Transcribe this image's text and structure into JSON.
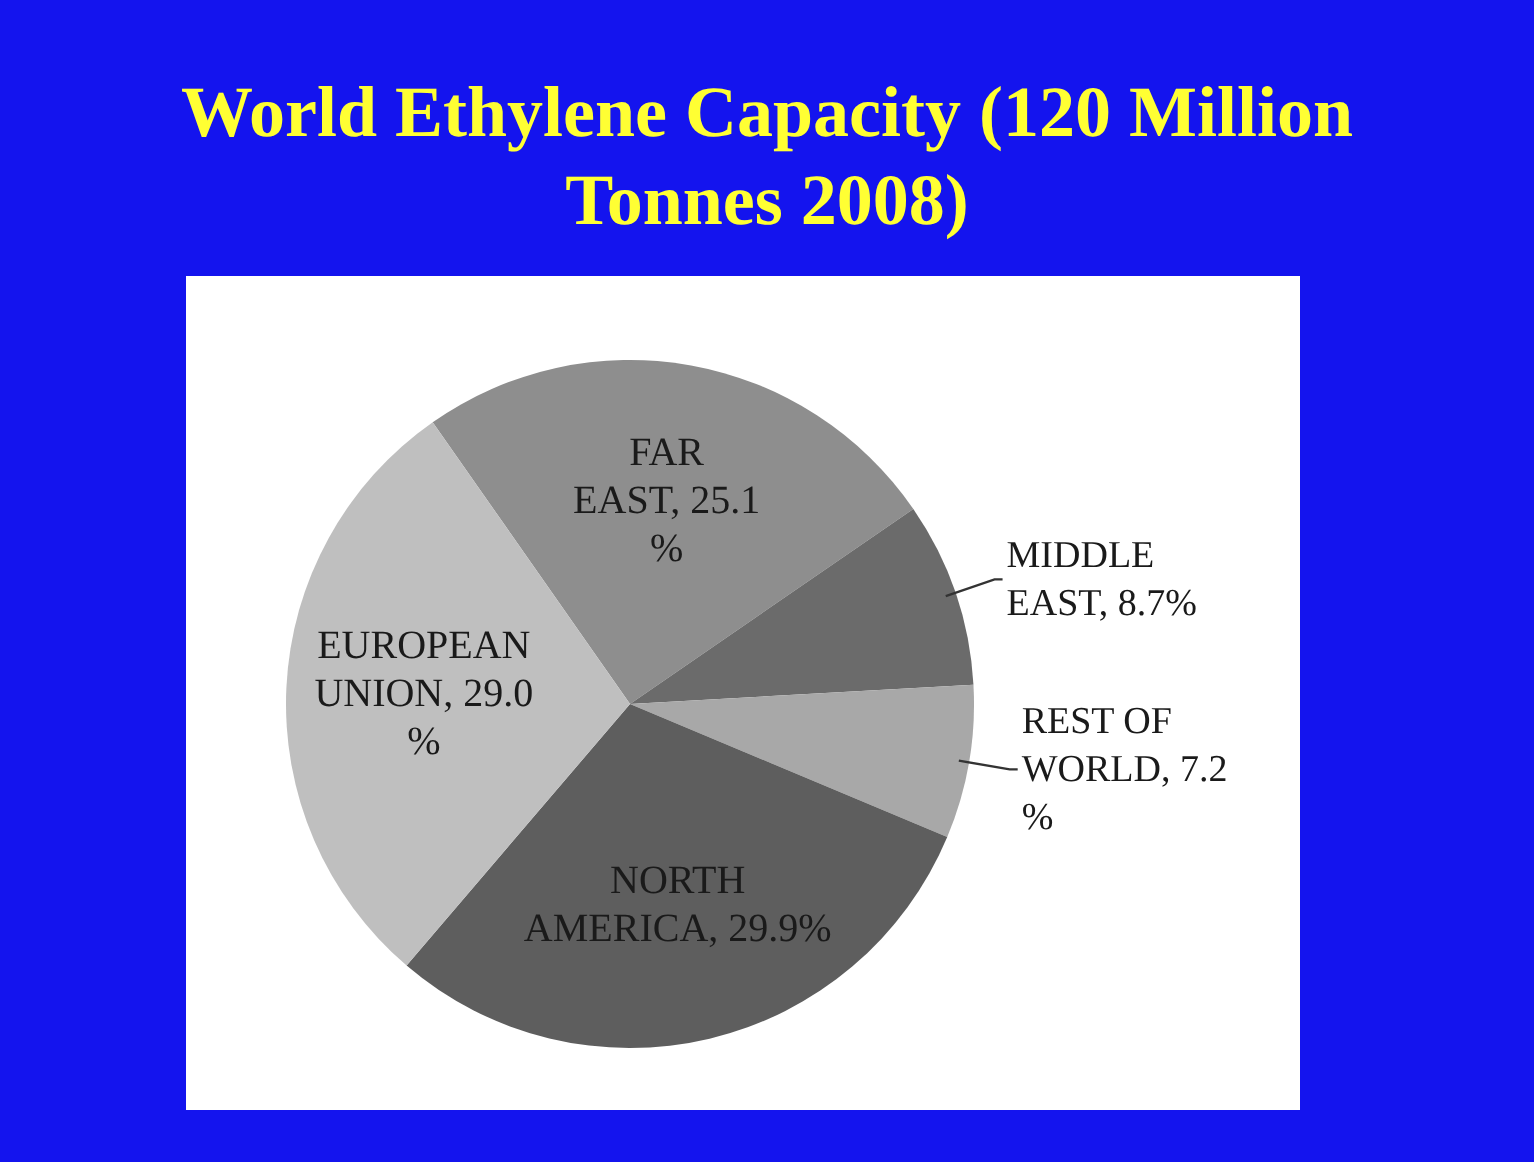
{
  "chart_data": {
    "type": "pie",
    "title": "World Ethylene Capacity (120 Million Tonnes 2008)",
    "categories": [
      "FAR EAST",
      "MIDDLE EAST",
      "REST OF WORLD",
      "NORTH AMERICA",
      "EUROPEAN UNION"
    ],
    "value_labels": [
      "25.1 %",
      "8.7%",
      "7.2 %",
      "29.9%",
      "29.0 %"
    ],
    "values": [
      25.1,
      8.7,
      7.2,
      29.9,
      29.0
    ],
    "colors": [
      "#8e8e8e",
      "#6b6b6b",
      "#a8a8a8",
      "#5e5e5e",
      "#bfbfbf"
    ],
    "data_labels": true,
    "legend": false
  }
}
